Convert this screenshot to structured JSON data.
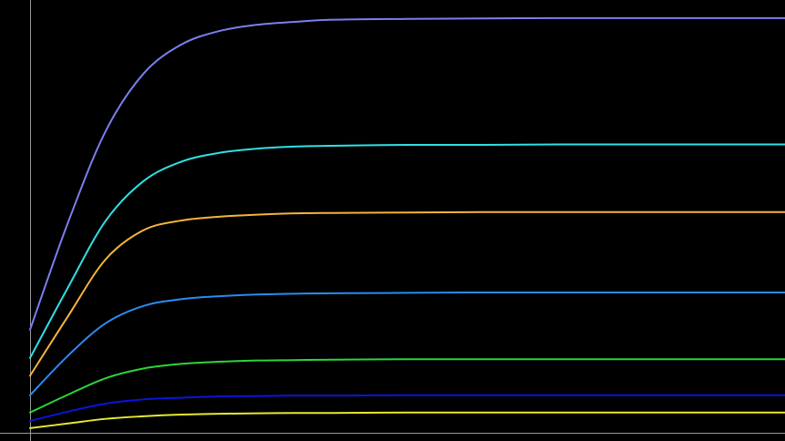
{
  "chart_data": {
    "type": "line",
    "title": "",
    "xlabel": "",
    "ylabel": "",
    "grid": false,
    "legend": "none",
    "background": "#000000",
    "axis_color": "#9a9a9a",
    "x_range": [
      0,
      10
    ],
    "y_range": [
      0,
      100
    ],
    "series": [
      {
        "color": "#7b7ff0",
        "x": [
          0,
          0.5,
          1,
          1.5,
          2,
          2.5,
          3,
          3.5,
          4,
          5,
          6,
          7,
          8,
          10
        ],
        "y": [
          24.4,
          49.6,
          71.3,
          84.9,
          91.8,
          95.0,
          96.5,
          97.2,
          97.7,
          97.9,
          98.0,
          98.1,
          98.1,
          98.1
        ]
      },
      {
        "color": "#30e0e6",
        "x": [
          0,
          0.5,
          1,
          1.5,
          2,
          2.5,
          3,
          3.5,
          4,
          5,
          6,
          7,
          8,
          10
        ],
        "y": [
          17.7,
          34.3,
          50.1,
          59.5,
          64.1,
          66.2,
          67.2,
          67.7,
          67.9,
          68.1,
          68.1,
          68.2,
          68.2,
          68.2
        ]
      },
      {
        "color": "#f4b53a",
        "x": [
          0,
          0.5,
          1,
          1.5,
          2,
          2.5,
          3,
          3.5,
          4,
          5,
          6,
          7,
          8,
          10
        ],
        "y": [
          13.5,
          27.5,
          41.0,
          47.9,
          50.2,
          51.1,
          51.6,
          51.9,
          52.0,
          52.1,
          52.2,
          52.2,
          52.2,
          52.2
        ]
      },
      {
        "color": "#2a8cf0",
        "x": [
          0,
          0.5,
          1,
          1.5,
          2,
          2.5,
          3,
          3.5,
          4,
          5,
          6,
          7,
          8,
          10
        ],
        "y": [
          8.9,
          18.2,
          25.9,
          30.0,
          31.6,
          32.3,
          32.7,
          32.9,
          33.0,
          33.1,
          33.2,
          33.2,
          33.2,
          33.2
        ]
      },
      {
        "color": "#2ed43a",
        "x": [
          0,
          0.5,
          1,
          1.5,
          2,
          2.5,
          3,
          3.5,
          4,
          5,
          6,
          7,
          8,
          10
        ],
        "y": [
          4.8,
          9.0,
          12.9,
          15.2,
          16.3,
          16.8,
          17.1,
          17.2,
          17.3,
          17.4,
          17.4,
          17.4,
          17.4,
          17.4
        ]
      },
      {
        "color": "#0a14dc",
        "x": [
          0,
          0.5,
          1,
          1.5,
          2,
          2.5,
          3,
          3.5,
          4,
          5,
          6,
          7,
          8,
          10
        ],
        "y": [
          2.8,
          5.0,
          6.9,
          7.9,
          8.3,
          8.6,
          8.7,
          8.8,
          8.8,
          8.9,
          8.9,
          8.9,
          8.9,
          8.9
        ]
      },
      {
        "color": "#e8e830",
        "x": [
          0,
          0.5,
          1,
          1.5,
          2,
          2.5,
          3,
          3.5,
          4,
          5,
          6,
          7,
          8,
          10
        ],
        "y": [
          1.1,
          2.2,
          3.3,
          3.9,
          4.3,
          4.5,
          4.6,
          4.7,
          4.7,
          4.8,
          4.8,
          4.8,
          4.8,
          4.8
        ]
      }
    ]
  }
}
